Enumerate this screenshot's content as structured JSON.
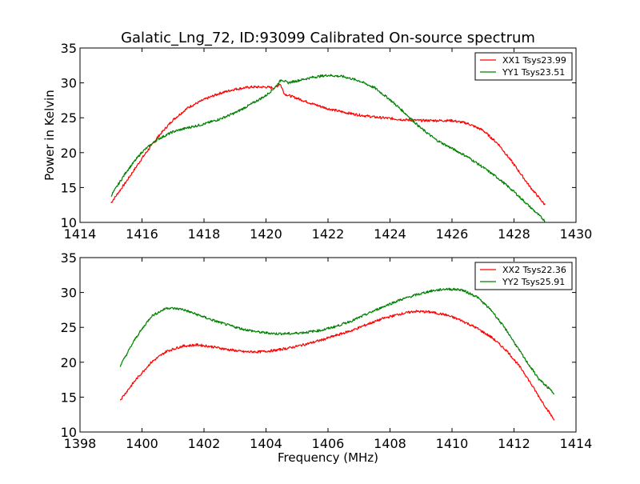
{
  "figure": {
    "title": "Galatic_Lng_72, ID:93099 Calibrated On-source spectrum"
  },
  "chart_data": [
    {
      "type": "line",
      "title": "Galatic_Lng_72, ID:93099 Calibrated On-source spectrum",
      "xlabel": "",
      "ylabel": "Power in Kelvin",
      "xlim": [
        1414,
        1430
      ],
      "ylim": [
        10,
        35
      ],
      "xticks": [
        1414,
        1416,
        1418,
        1420,
        1422,
        1424,
        1426,
        1428,
        1430
      ],
      "yticks": [
        10,
        15,
        20,
        25,
        30,
        35
      ],
      "legend_position": "top-right",
      "grid": false,
      "series": [
        {
          "name": "XX1 Tsys23.99",
          "color": "#ff0000",
          "x": [
            1415.0,
            1415.5,
            1416.0,
            1416.5,
            1417.0,
            1417.5,
            1418.0,
            1418.5,
            1419.0,
            1419.5,
            1420.0,
            1420.3,
            1420.45,
            1420.6,
            1421.0,
            1421.5,
            1422.0,
            1422.5,
            1423.0,
            1423.5,
            1424.0,
            1424.5,
            1425.0,
            1425.5,
            1426.0,
            1426.5,
            1427.0,
            1427.5,
            1428.0,
            1428.5,
            1429.0
          ],
          "y": [
            12.8,
            15.9,
            19.2,
            22.2,
            24.7,
            26.5,
            27.6,
            28.5,
            29.1,
            29.4,
            29.4,
            29.3,
            29.9,
            28.4,
            27.8,
            27.0,
            26.3,
            25.8,
            25.4,
            25.1,
            24.9,
            24.7,
            24.6,
            24.6,
            24.6,
            24.2,
            23.2,
            21.2,
            18.3,
            15.2,
            12.5
          ]
        },
        {
          "name": "YY1 Tsys23.51",
          "color": "#008000",
          "x": [
            1415.0,
            1415.5,
            1416.0,
            1416.5,
            1417.0,
            1417.5,
            1418.0,
            1418.5,
            1419.0,
            1419.5,
            1420.0,
            1420.3,
            1420.5,
            1420.7,
            1421.0,
            1421.5,
            1422.0,
            1422.5,
            1423.0,
            1423.5,
            1424.0,
            1424.5,
            1425.0,
            1425.5,
            1426.0,
            1426.5,
            1427.0,
            1427.5,
            1428.0,
            1428.5,
            1429.0
          ],
          "y": [
            13.8,
            17.3,
            20.1,
            21.9,
            23.0,
            23.6,
            24.1,
            24.8,
            25.7,
            26.9,
            28.2,
            29.4,
            30.5,
            30.0,
            30.3,
            30.8,
            31.1,
            30.9,
            30.3,
            29.3,
            27.6,
            25.6,
            23.5,
            21.8,
            20.6,
            19.4,
            17.9,
            16.3,
            14.4,
            12.3,
            10.2
          ]
        }
      ]
    },
    {
      "type": "line",
      "title": "",
      "xlabel": "Frequency (MHz)",
      "ylabel": "",
      "xlim": [
        1398,
        1414
      ],
      "ylim": [
        10,
        35
      ],
      "xticks": [
        1398,
        1400,
        1402,
        1404,
        1406,
        1408,
        1410,
        1412,
        1414
      ],
      "yticks": [
        10,
        15,
        20,
        25,
        30,
        35
      ],
      "legend_position": "top-right",
      "grid": false,
      "series": [
        {
          "name": "XX2 Tsys22.36",
          "color": "#ff0000",
          "x": [
            1399.3,
            1399.8,
            1400.3,
            1400.8,
            1401.3,
            1401.8,
            1402.3,
            1402.8,
            1403.3,
            1403.8,
            1404.3,
            1404.8,
            1405.3,
            1405.8,
            1406.3,
            1406.8,
            1407.3,
            1407.8,
            1408.3,
            1408.8,
            1409.3,
            1409.8,
            1410.3,
            1410.8,
            1411.3,
            1411.8,
            1412.3,
            1412.8,
            1413.3
          ],
          "y": [
            14.6,
            17.5,
            20.0,
            21.6,
            22.3,
            22.5,
            22.2,
            21.8,
            21.5,
            21.5,
            21.7,
            22.1,
            22.6,
            23.2,
            23.9,
            24.6,
            25.5,
            26.3,
            26.9,
            27.3,
            27.2,
            26.8,
            26.0,
            24.9,
            23.5,
            21.5,
            18.7,
            15.1,
            11.7
          ]
        },
        {
          "name": "YY2 Tsys25.91",
          "color": "#008000",
          "x": [
            1399.3,
            1399.8,
            1400.3,
            1400.8,
            1401.3,
            1401.8,
            1402.3,
            1402.8,
            1403.3,
            1403.8,
            1404.3,
            1404.8,
            1405.3,
            1405.8,
            1406.3,
            1406.8,
            1407.3,
            1407.8,
            1408.3,
            1408.8,
            1409.3,
            1409.8,
            1410.3,
            1410.8,
            1411.3,
            1411.8,
            1412.3,
            1412.8,
            1413.3
          ],
          "y": [
            19.5,
            23.5,
            26.6,
            27.8,
            27.6,
            26.8,
            26.0,
            25.3,
            24.7,
            24.3,
            24.1,
            24.1,
            24.3,
            24.6,
            25.2,
            26.0,
            27.0,
            28.0,
            28.9,
            29.6,
            30.2,
            30.5,
            30.4,
            29.4,
            27.3,
            24.3,
            20.8,
            17.6,
            15.5
          ]
        }
      ]
    }
  ]
}
